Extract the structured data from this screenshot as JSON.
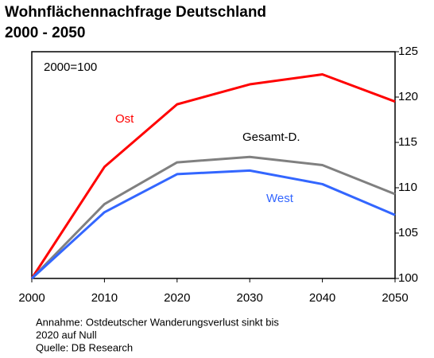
{
  "chart_data": {
    "type": "line",
    "title": "Wohnflächennachfrage Deutschland",
    "subtitle": "2000 - 2050",
    "annotation": "2000=100",
    "x": [
      2000,
      2010,
      2020,
      2030,
      2040,
      2050
    ],
    "xlim": [
      2000,
      2050
    ],
    "xticks": [
      2000,
      2010,
      2020,
      2030,
      2040,
      2050
    ],
    "ylim": [
      100,
      125
    ],
    "yticks": [
      100,
      105,
      110,
      115,
      120,
      125
    ],
    "grid": false,
    "series": [
      {
        "name": "Ost",
        "color": "#ff0000",
        "values": [
          100,
          112.3,
          119.2,
          121.4,
          122.5,
          119.5
        ]
      },
      {
        "name": "Gesamt-D.",
        "color": "#808080",
        "values": [
          100,
          108.2,
          112.8,
          113.4,
          112.5,
          109.3
        ]
      },
      {
        "name": "West",
        "color": "#3366ff",
        "values": [
          100,
          107.3,
          111.5,
          111.9,
          110.4,
          107.0
        ]
      }
    ],
    "notes": [
      "Annahme: Ostdeutscher Wanderungsverlust sinkt bis",
      "2020 auf Null",
      "Quelle: DB Research"
    ]
  }
}
